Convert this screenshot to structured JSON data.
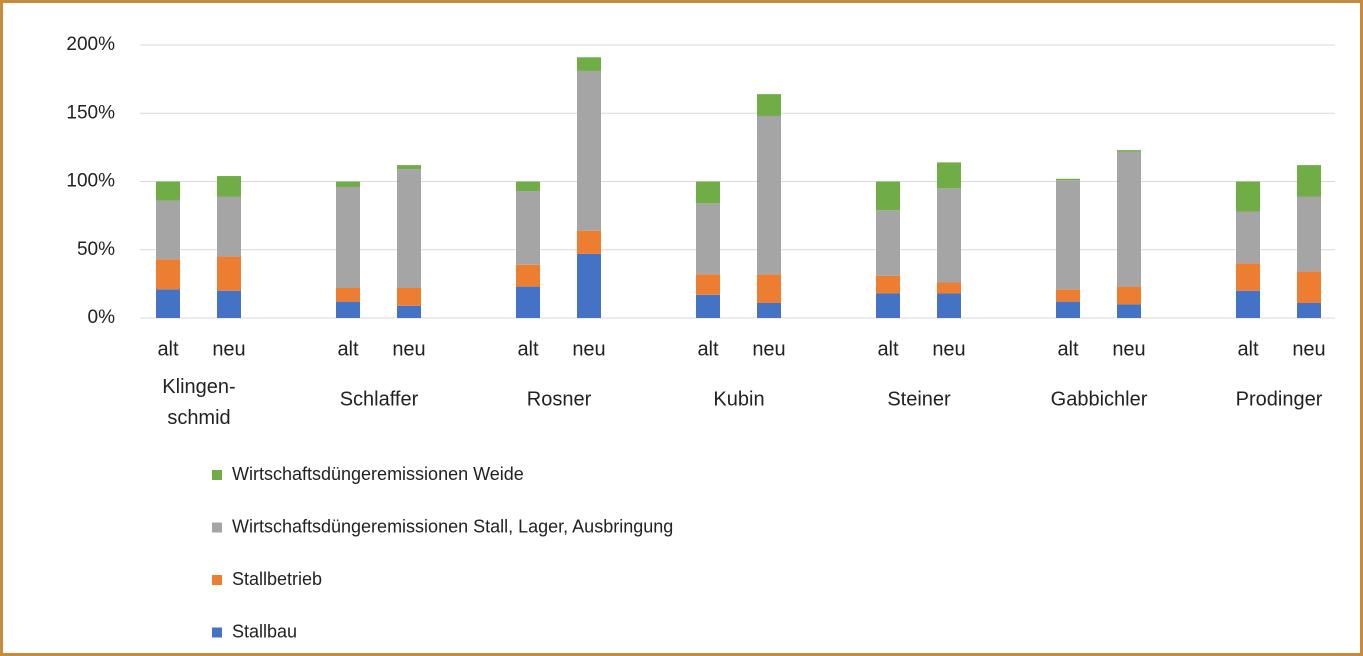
{
  "chart_data": {
    "type": "stacked_bar",
    "categories": [
      "alt",
      "neu",
      "alt",
      "neu",
      "alt",
      "neu",
      "alt",
      "neu",
      "alt",
      "neu",
      "alt",
      "neu",
      "alt",
      "neu"
    ],
    "groups": [
      "Klingen-\nschmid",
      "Schlaffer",
      "Rosner",
      "Kubin",
      "Steiner",
      "Gabbichler",
      "Prodinger"
    ],
    "series": [
      {
        "name": "Stallbau",
        "color": "#4472c4",
        "values": [
          21,
          20,
          12,
          9,
          23,
          47,
          17,
          11,
          18,
          18,
          12,
          10,
          20,
          11
        ]
      },
      {
        "name": "Stallbetrieb",
        "color": "#ed7d31",
        "values": [
          22,
          25,
          10,
          13,
          16,
          17,
          15,
          21,
          13,
          8,
          9,
          13,
          20,
          23
        ]
      },
      {
        "name": "Wirtschaftsdüngeremissionen Stall, Lager, Ausbringung",
        "color": "#a5a5a5",
        "values": [
          43,
          44,
          74,
          87,
          54,
          117,
          52,
          116,
          48,
          69,
          80,
          99,
          38,
          55
        ]
      },
      {
        "name": "Wirtschaftsdüngeremissionen Weide",
        "color": "#70ad47",
        "values": [
          14,
          15,
          4,
          3,
          7,
          10,
          16,
          16,
          21,
          19,
          1,
          1,
          22,
          23
        ]
      }
    ],
    "ylim": [
      0,
      200
    ],
    "yticks": [
      {
        "value": 0,
        "label": "0%"
      },
      {
        "value": 50,
        "label": "50%"
      },
      {
        "value": 100,
        "label": "100%"
      },
      {
        "value": 150,
        "label": "150%"
      },
      {
        "value": 200,
        "label": "200%"
      }
    ],
    "grid": true
  }
}
